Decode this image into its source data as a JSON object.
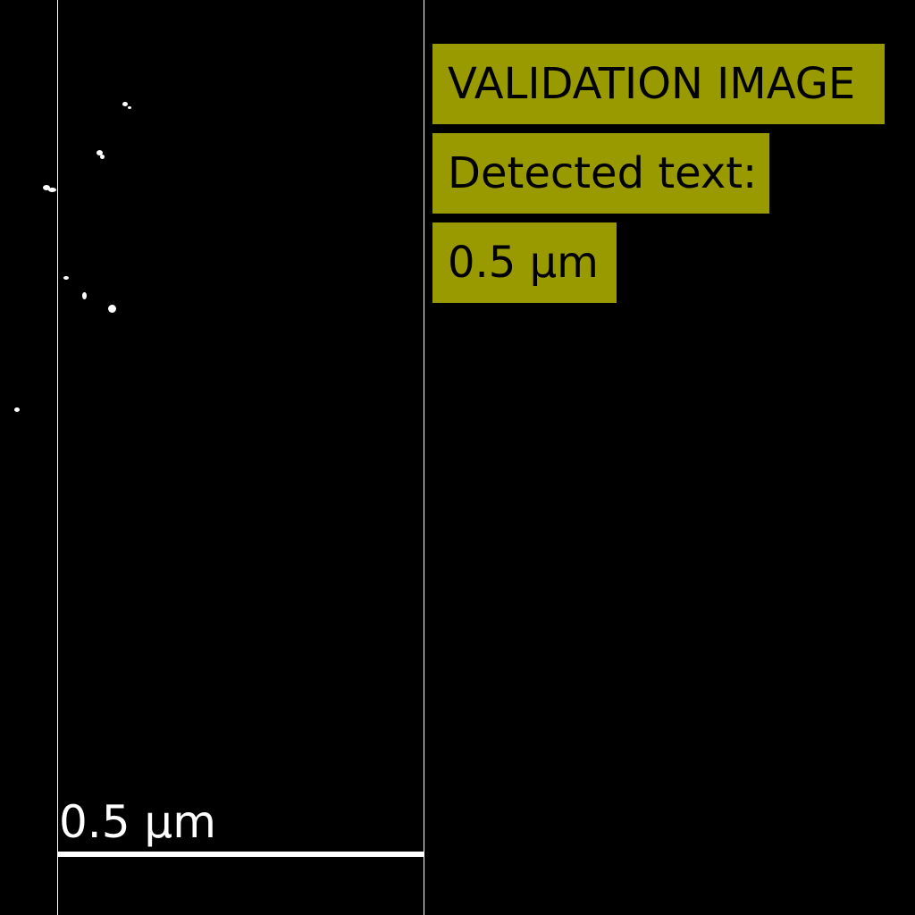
{
  "overlay": {
    "title": "VALIDATION IMAGE",
    "detected_label": "Detected text:",
    "detected_value": "0.5 µm",
    "box_color": "#999900"
  },
  "image": {
    "scale_bar_label": "0.5 µm",
    "background_color": "#000000",
    "foreground_color": "#ffffff"
  }
}
